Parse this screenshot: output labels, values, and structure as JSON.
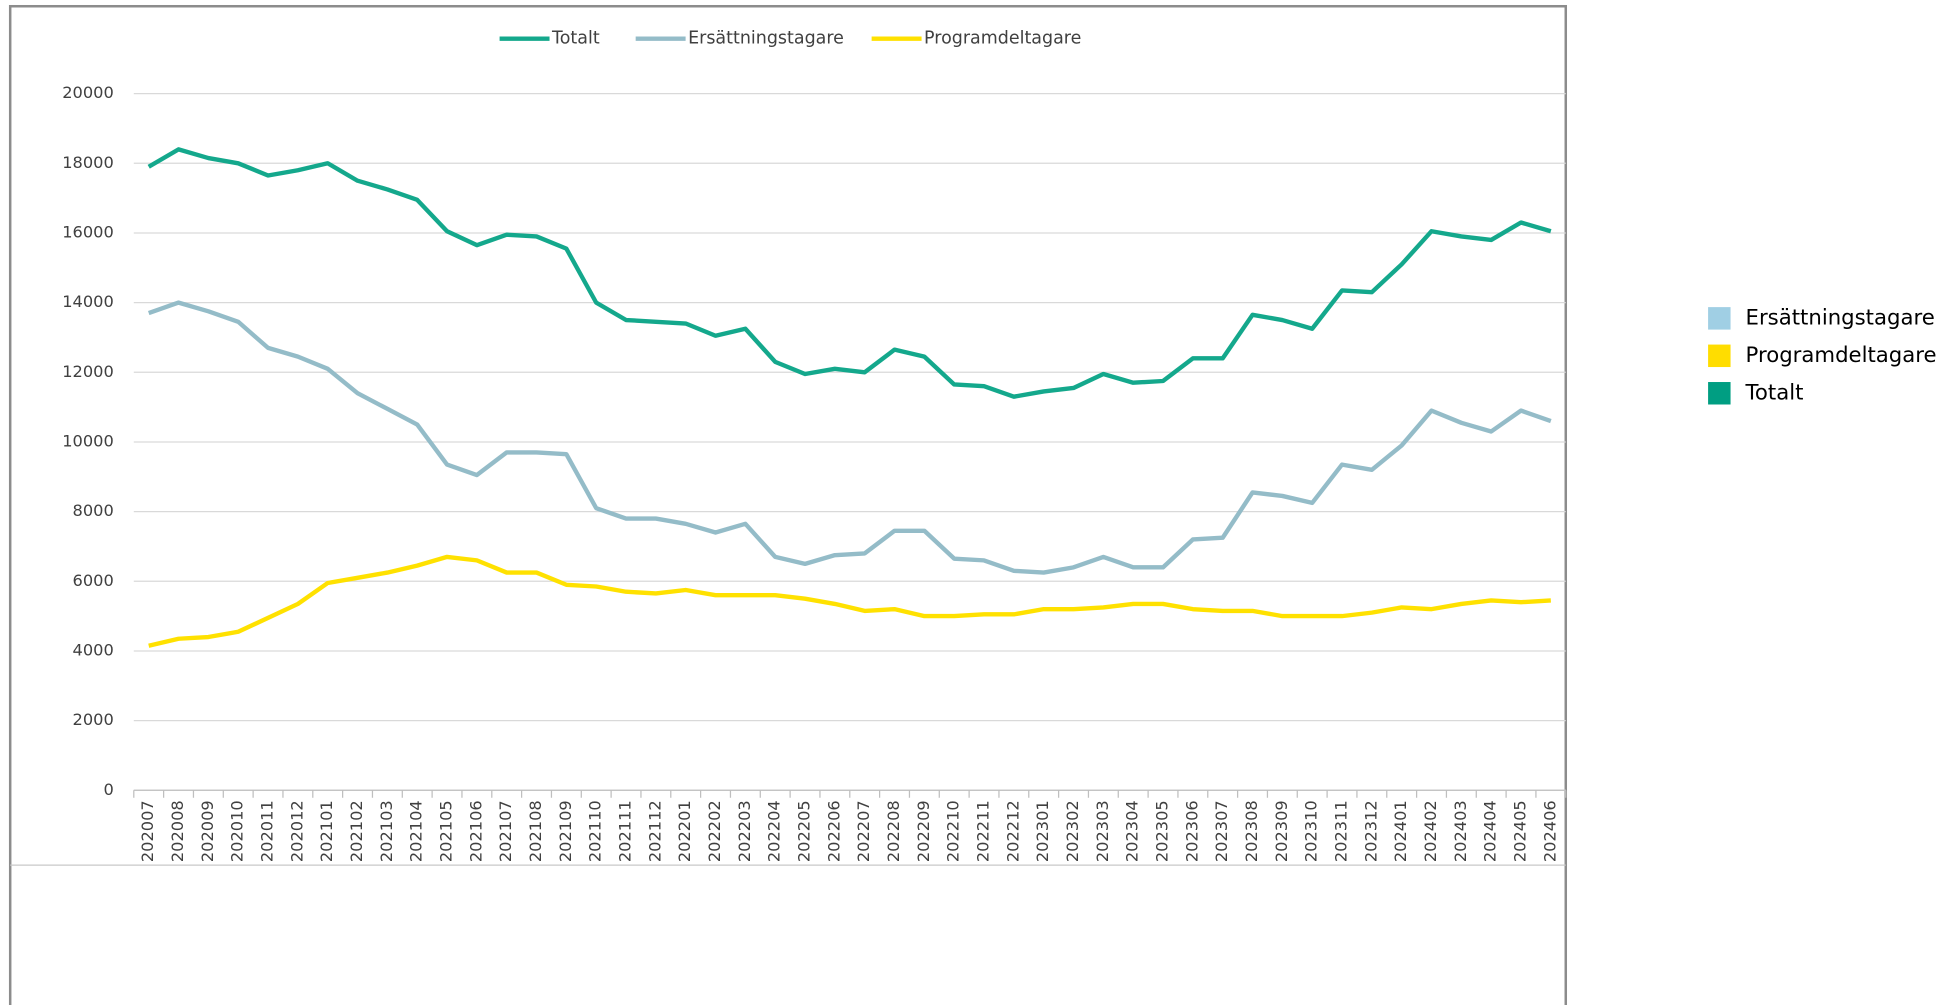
{
  "chart_data": {
    "type": "line",
    "categories": [
      "202007",
      "202008",
      "202009",
      "202010",
      "202011",
      "202012",
      "202101",
      "202102",
      "202103",
      "202104",
      "202105",
      "202106",
      "202107",
      "202108",
      "202109",
      "202110",
      "202111",
      "202112",
      "202201",
      "202202",
      "202203",
      "202204",
      "202205",
      "202206",
      "202207",
      "202208",
      "202209",
      "202210",
      "202211",
      "202212",
      "202301",
      "202302",
      "202303",
      "202304",
      "202305",
      "202306",
      "202307",
      "202308",
      "202309",
      "202310",
      "202311",
      "202312",
      "202401",
      "202402",
      "202403",
      "202404",
      "202405",
      "202406"
    ],
    "series": [
      {
        "name": "Totalt",
        "color": "#14a88c",
        "swatch": "#009e82",
        "values": [
          17900,
          18400,
          18150,
          18000,
          17650,
          17800,
          18000,
          17500,
          17250,
          16950,
          16050,
          15650,
          15950,
          15900,
          15550,
          14000,
          13500,
          13450,
          13400,
          13050,
          13250,
          12300,
          11950,
          12100,
          12000,
          12650,
          12450,
          11650,
          11600,
          11300,
          11450,
          11550,
          11950,
          11700,
          11750,
          12400,
          12400,
          13650,
          13500,
          13250,
          14350,
          14300,
          15100,
          16050,
          15900,
          15800,
          16300,
          16050
        ]
      },
      {
        "name": "Ersättningstagare",
        "color": "#94bcc8",
        "swatch": "#a0cfe4",
        "values": [
          13700,
          14000,
          13750,
          13450,
          12700,
          12450,
          12100,
          11400,
          10950,
          10500,
          9350,
          9050,
          9700,
          9700,
          9650,
          8100,
          7800,
          7800,
          7650,
          7400,
          7650,
          6700,
          6500,
          6750,
          6800,
          7450,
          7450,
          6650,
          6600,
          6300,
          6250,
          6400,
          6700,
          6400,
          6400,
          7200,
          7250,
          8550,
          8450,
          8250,
          9350,
          9200,
          9900,
          10900,
          10550,
          10300,
          10900,
          10600
        ]
      },
      {
        "name": "Programdeltagare",
        "color": "#ffe100",
        "swatch": "#ffdd00",
        "values": [
          4150,
          4350,
          4400,
          4550,
          4950,
          5350,
          5950,
          6100,
          6250,
          6450,
          6700,
          6600,
          6250,
          6250,
          5900,
          5850,
          5700,
          5650,
          5750,
          5600,
          5600,
          5600,
          5500,
          5350,
          5150,
          5200,
          5000,
          5000,
          5050,
          5050,
          5200,
          5200,
          5250,
          5350,
          5350,
          5200,
          5150,
          5150,
          5000,
          5000,
          5000,
          5100,
          5250,
          5200,
          5350,
          5450,
          5400,
          5450
        ]
      }
    ],
    "ylim": [
      0,
      20000
    ],
    "yticks": [
      0,
      2000,
      4000,
      6000,
      8000,
      10000,
      12000,
      14000,
      16000,
      18000,
      20000
    ],
    "grid": true
  }
}
